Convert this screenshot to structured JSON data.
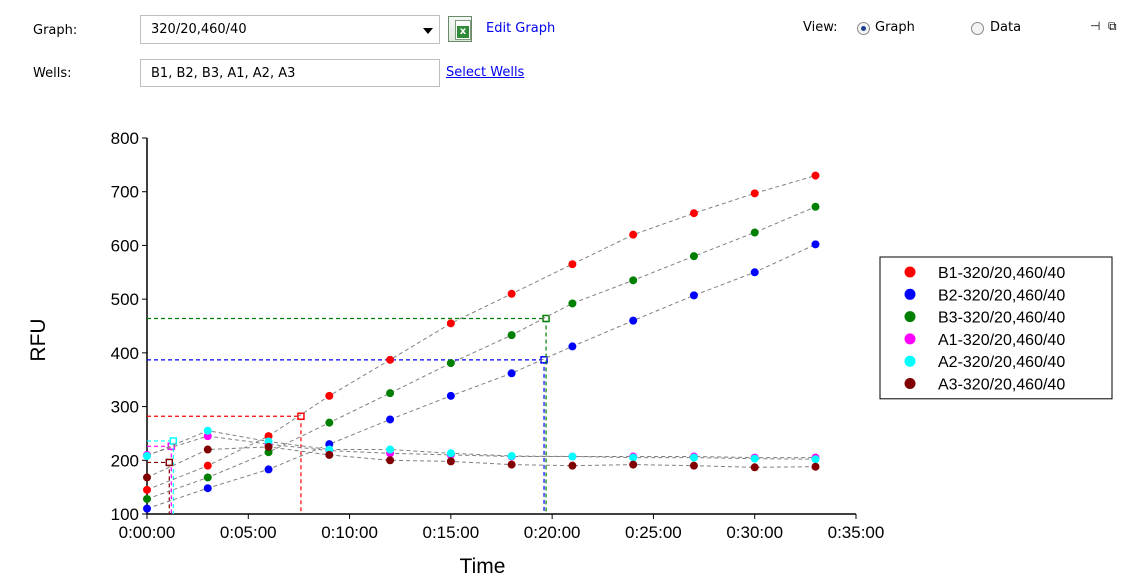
{
  "toolbar": {
    "graph_label": "Graph:",
    "graph_value": "320/20,460/40",
    "edit_graph_label": "Edit Graph",
    "wells_label": "Wells:",
    "wells_value": "B1, B2, B3, A1, A2, A3",
    "select_wells_label": "Select Wells",
    "view_label": "View:",
    "view_options": [
      {
        "label": "Graph",
        "selected": true
      },
      {
        "label": "Data",
        "selected": false
      }
    ]
  },
  "chart_data": {
    "type": "scatter",
    "xlabel": "Time",
    "ylabel": "RFU",
    "ylim": [
      100,
      800
    ],
    "yticks": [
      "100",
      "200",
      "300",
      "400",
      "500",
      "600",
      "700",
      "800"
    ],
    "xlim_minutes": [
      0,
      35
    ],
    "xticks": [
      "0:00:00",
      "0:05:00",
      "0:10:00",
      "0:15:00",
      "0:20:00",
      "0:25:00",
      "0:30:00",
      "0:35:00"
    ],
    "grid": false,
    "legend": "right",
    "x_minutes": [
      0,
      3,
      6,
      9,
      12,
      15,
      18,
      21,
      24,
      27,
      30,
      33
    ],
    "series": [
      {
        "name": "B1-320/20,460/40",
        "color": "#ff0000",
        "values": [
          145,
          190,
          245,
          320,
          387,
          455,
          510,
          565,
          620,
          660,
          697,
          730
        ],
        "threshold": {
          "x_minutes": 7.6,
          "y": 282
        }
      },
      {
        "name": "B2-320/20,460/40",
        "color": "#0000ff",
        "values": [
          110,
          148,
          183,
          230,
          276,
          320,
          362,
          412,
          460,
          507,
          550,
          602
        ],
        "threshold": {
          "x_minutes": 19.6,
          "y": 387
        }
      },
      {
        "name": "B3-320/20,460/40",
        "color": "#008000",
        "values": [
          128,
          168,
          215,
          270,
          325,
          381,
          433,
          492,
          535,
          580,
          624,
          672
        ],
        "threshold": {
          "x_minutes": 19.7,
          "y": 464
        }
      },
      {
        "name": "A1-320/20,460/40",
        "color": "#ff00ff",
        "values": [
          210,
          245,
          230,
          218,
          213,
          210,
          207,
          207,
          207,
          207,
          205,
          205
        ],
        "threshold": {
          "x_minutes": 1.2,
          "y": 226
        }
      },
      {
        "name": "A2-320/20,460/40",
        "color": "#00ffff",
        "values": [
          208,
          255,
          235,
          220,
          220,
          213,
          208,
          207,
          205,
          205,
          203,
          202
        ],
        "threshold": {
          "x_minutes": 1.3,
          "y": 236
        }
      },
      {
        "name": "A3-320/20,460/40",
        "color": "#800000",
        "values": [
          168,
          220,
          225,
          210,
          200,
          198,
          192,
          190,
          192,
          190,
          187,
          188
        ],
        "threshold": {
          "x_minutes": 1.1,
          "y": 196
        }
      }
    ]
  }
}
